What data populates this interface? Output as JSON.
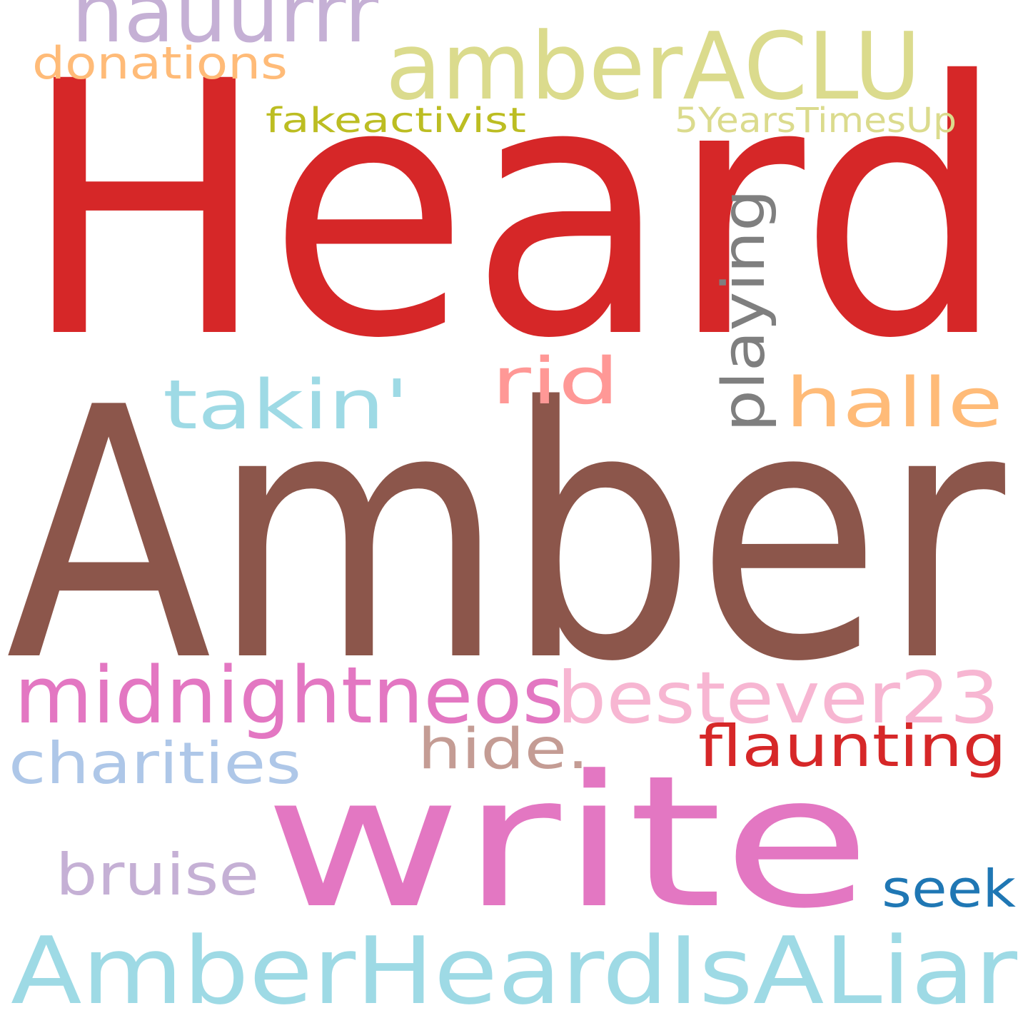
{
  "words": [
    {
      "id": "heard",
      "text": "Heard",
      "color": "#d62728"
    },
    {
      "id": "amber-big",
      "text": "Amber",
      "color": "#8c564b"
    },
    {
      "id": "write",
      "text": "write",
      "color": "#e377c2"
    },
    {
      "id": "amber-heard-is-a-liar",
      "text": "AmberHeardIsALiar",
      "color": "#9edae5"
    },
    {
      "id": "midnightneos",
      "text": "midnightneos",
      "color": "#e377c2"
    },
    {
      "id": "bestever23",
      "text": "bestever23",
      "color": "#f7b6d2"
    },
    {
      "id": "amber-aclu",
      "text": "amberACLU",
      "color": "#dbdb8d"
    },
    {
      "id": "nauurrr",
      "text": "nauurrr",
      "color": "#c5b0d5"
    },
    {
      "id": "takin",
      "text": "takin'",
      "color": "#9edae5"
    },
    {
      "id": "halle",
      "text": "halle",
      "color": "#ffbb78"
    },
    {
      "id": "rid",
      "text": "rid",
      "color": "#ff9896"
    },
    {
      "id": "playing",
      "text": "playing",
      "color": "#7f7f7f"
    },
    {
      "id": "flaunting",
      "text": "flaunting",
      "color": "#d62728"
    },
    {
      "id": "charities",
      "text": "charities",
      "color": "#aec7e8"
    },
    {
      "id": "hide",
      "text": "hide.",
      "color": "#c49c94"
    },
    {
      "id": "bruise",
      "text": "bruise",
      "color": "#c5b0d5"
    },
    {
      "id": "seek",
      "text": "seek",
      "color": "#1f77b4"
    },
    {
      "id": "donations",
      "text": "donations",
      "color": "#ffbb78"
    },
    {
      "id": "fakeactivist",
      "text": "fakeactivist",
      "color": "#bcbd22"
    },
    {
      "id": "5yearstimesup",
      "text": "5YearsTimesUp",
      "color": "#dbdb8d"
    }
  ]
}
